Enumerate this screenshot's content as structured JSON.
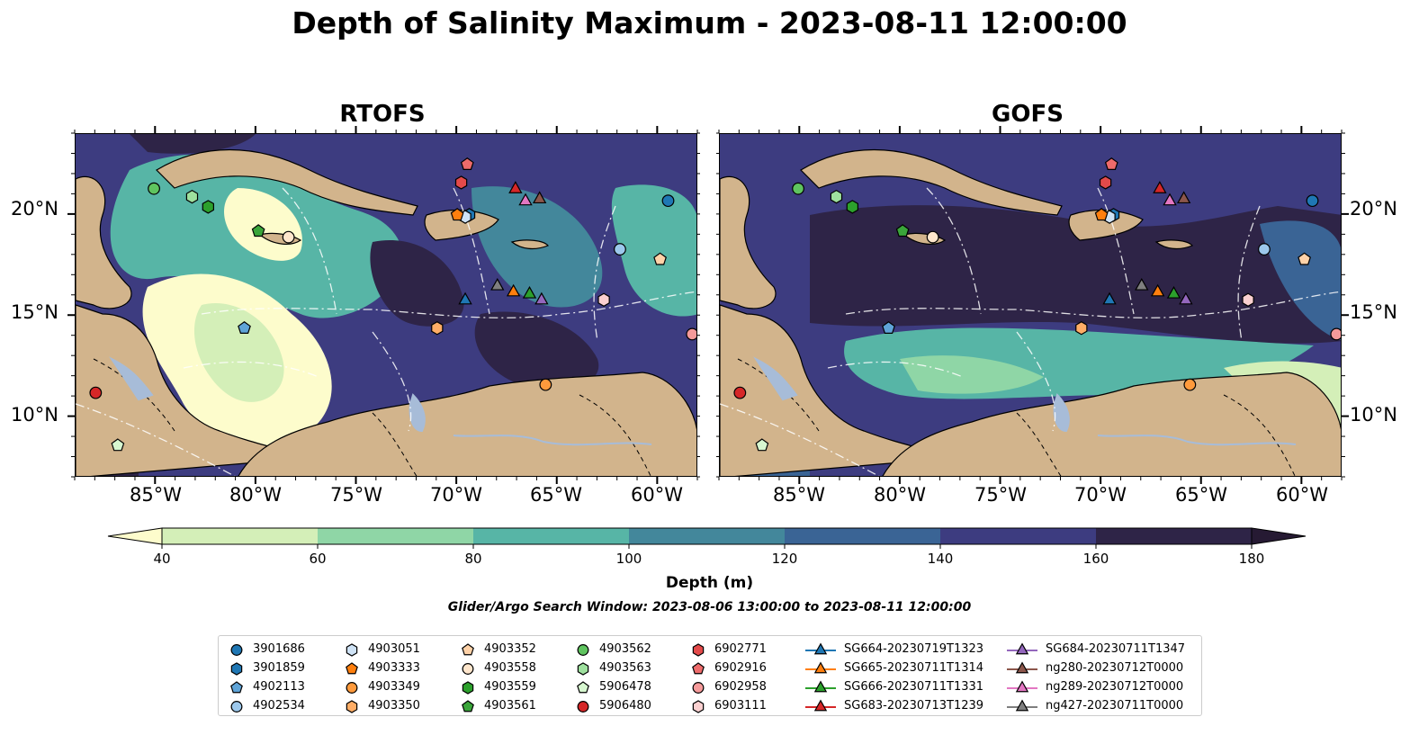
{
  "title": "Depth of Salinity Maximum - 2023-08-11 12:00:00",
  "panels": [
    {
      "title": "RTOFS"
    },
    {
      "title": "GOFS"
    }
  ],
  "axes": {
    "lon_ticks": [
      "85°W",
      "80°W",
      "75°W",
      "70°W",
      "65°W",
      "60°W"
    ],
    "lat_ticks": [
      "20°N",
      "15°N",
      "10°N"
    ],
    "lon_range": [
      -89,
      -58
    ],
    "lat_range": [
      7,
      24
    ]
  },
  "colorbar": {
    "label": "Depth (m)",
    "ticks": [
      "40",
      "60",
      "80",
      "100",
      "120",
      "140",
      "160",
      "180"
    ],
    "colors": [
      "#d4efb8",
      "#8fd6a6",
      "#57b5a6",
      "#43879b",
      "#3a6495",
      "#3d3c80",
      "#2e2447"
    ],
    "extend": "both",
    "under_color": "#fdfccc",
    "over_color": "#261a33"
  },
  "search_window": "Glider/Argo Search Window: 2023-08-06 13:00:00 to 2023-08-11 12:00:00",
  "legend": {
    "columns": [
      [
        {
          "label": "3901686",
          "marker": "circle",
          "color": "#1f77b4"
        },
        {
          "label": "3901859",
          "marker": "hexagon",
          "color": "#1f77b4"
        },
        {
          "label": "4902113",
          "marker": "pentagon",
          "color": "#5fa4d8"
        },
        {
          "label": "4902534",
          "marker": "circle",
          "color": "#9cc8ec"
        }
      ],
      [
        {
          "label": "4903051",
          "marker": "hexagon",
          "color": "#cfe3f6"
        },
        {
          "label": "4903333",
          "marker": "pentagon",
          "color": "#ff7f0e"
        },
        {
          "label": "4903349",
          "marker": "circle",
          "color": "#ff9a3c"
        },
        {
          "label": "4903350",
          "marker": "hexagon",
          "color": "#ffad66"
        }
      ],
      [
        {
          "label": "4903352",
          "marker": "pentagon",
          "color": "#ffd2a8"
        },
        {
          "label": "4903558",
          "marker": "circle",
          "color": "#ffe6cc"
        },
        {
          "label": "4903559",
          "marker": "hexagon",
          "color": "#2ca02c"
        },
        {
          "label": "4903561",
          "marker": "pentagon",
          "color": "#3aa53a"
        }
      ],
      [
        {
          "label": "4903562",
          "marker": "circle",
          "color": "#5fc45f"
        },
        {
          "label": "4903563",
          "marker": "hexagon",
          "color": "#9ee09e"
        },
        {
          "label": "5906478",
          "marker": "pentagon",
          "color": "#d7f7d0"
        },
        {
          "label": "5906480",
          "marker": "circle",
          "color": "#d62728"
        }
      ],
      [
        {
          "label": "6902771",
          "marker": "hexagon",
          "color": "#e34a4a"
        },
        {
          "label": "6902916",
          "marker": "pentagon",
          "color": "#ee6b6b"
        },
        {
          "label": "6902958",
          "marker": "circle",
          "color": "#f59a9a"
        },
        {
          "label": "6903111",
          "marker": "hexagon",
          "color": "#fbd0d0"
        }
      ],
      [
        {
          "label": "SG664-20230719T1323",
          "marker": "triangle",
          "color": "#1f77b4"
        },
        {
          "label": "SG665-20230711T1314",
          "marker": "triangle",
          "color": "#ff7f0e"
        },
        {
          "label": "SG666-20230711T1331",
          "marker": "triangle",
          "color": "#2ca02c"
        },
        {
          "label": "SG683-20230713T1239",
          "marker": "triangle",
          "color": "#d62728"
        }
      ],
      [
        {
          "label": "SG684-20230711T1347",
          "marker": "triangle",
          "color": "#9467bd"
        },
        {
          "label": "ng280-20230712T0000",
          "marker": "triangle",
          "color": "#8c564b"
        },
        {
          "label": "ng289-20230712T0000",
          "marker": "triangle",
          "color": "#e377c2"
        },
        {
          "label": "ng427-20230711T0000",
          "marker": "triangle",
          "color": "#7f7f7f"
        }
      ]
    ]
  },
  "observations": [
    {
      "label": "3901686",
      "lon": -59.5,
      "lat": 20.7
    },
    {
      "label": "3901859",
      "lon": -69.4,
      "lat": 20.0
    },
    {
      "label": "4902113",
      "lon": -80.6,
      "lat": 14.4
    },
    {
      "label": "4902534",
      "lon": -61.9,
      "lat": 18.3
    },
    {
      "label": "4903051",
      "lon": -69.6,
      "lat": 19.9
    },
    {
      "label": "4903333",
      "lon": -70.0,
      "lat": 20.0
    },
    {
      "label": "4903349",
      "lon": -65.6,
      "lat": 11.6
    },
    {
      "label": "4903350",
      "lon": -71.0,
      "lat": 14.4
    },
    {
      "label": "4903352",
      "lon": -59.9,
      "lat": 17.8
    },
    {
      "label": "4903558",
      "lon": -78.4,
      "lat": 18.9
    },
    {
      "label": "4903559",
      "lon": -82.4,
      "lat": 20.4
    },
    {
      "label": "4903561",
      "lon": -79.9,
      "lat": 19.2
    },
    {
      "label": "4903562",
      "lon": -85.1,
      "lat": 21.3
    },
    {
      "label": "4903563",
      "lon": -83.2,
      "lat": 20.9
    },
    {
      "label": "5906478",
      "lon": -86.9,
      "lat": 8.6
    },
    {
      "label": "5906480",
      "lon": -88.0,
      "lat": 11.2
    },
    {
      "label": "6902771",
      "lon": -69.8,
      "lat": 21.6
    },
    {
      "label": "6902916",
      "lon": -69.5,
      "lat": 22.5
    },
    {
      "label": "6902958",
      "lon": -58.3,
      "lat": 14.1
    },
    {
      "label": "6903111",
      "lon": -62.7,
      "lat": 15.8
    },
    {
      "label": "SG664-20230719T1323",
      "lon": -69.6,
      "lat": 15.8
    },
    {
      "label": "SG665-20230711T1314",
      "lon": -67.2,
      "lat": 16.2
    },
    {
      "label": "SG666-20230711T1331",
      "lon": -66.4,
      "lat": 16.1
    },
    {
      "label": "SG683-20230713T1239",
      "lon": -67.1,
      "lat": 21.3
    },
    {
      "label": "SG684-20230711T1347",
      "lon": -65.8,
      "lat": 15.8
    },
    {
      "label": "ng280-20230712T0000",
      "lon": -65.9,
      "lat": 20.8
    },
    {
      "label": "ng289-20230712T0000",
      "lon": -66.6,
      "lat": 20.7
    },
    {
      "label": "ng427-20230711T0000",
      "lon": -68.0,
      "lat": 16.5
    }
  ]
}
